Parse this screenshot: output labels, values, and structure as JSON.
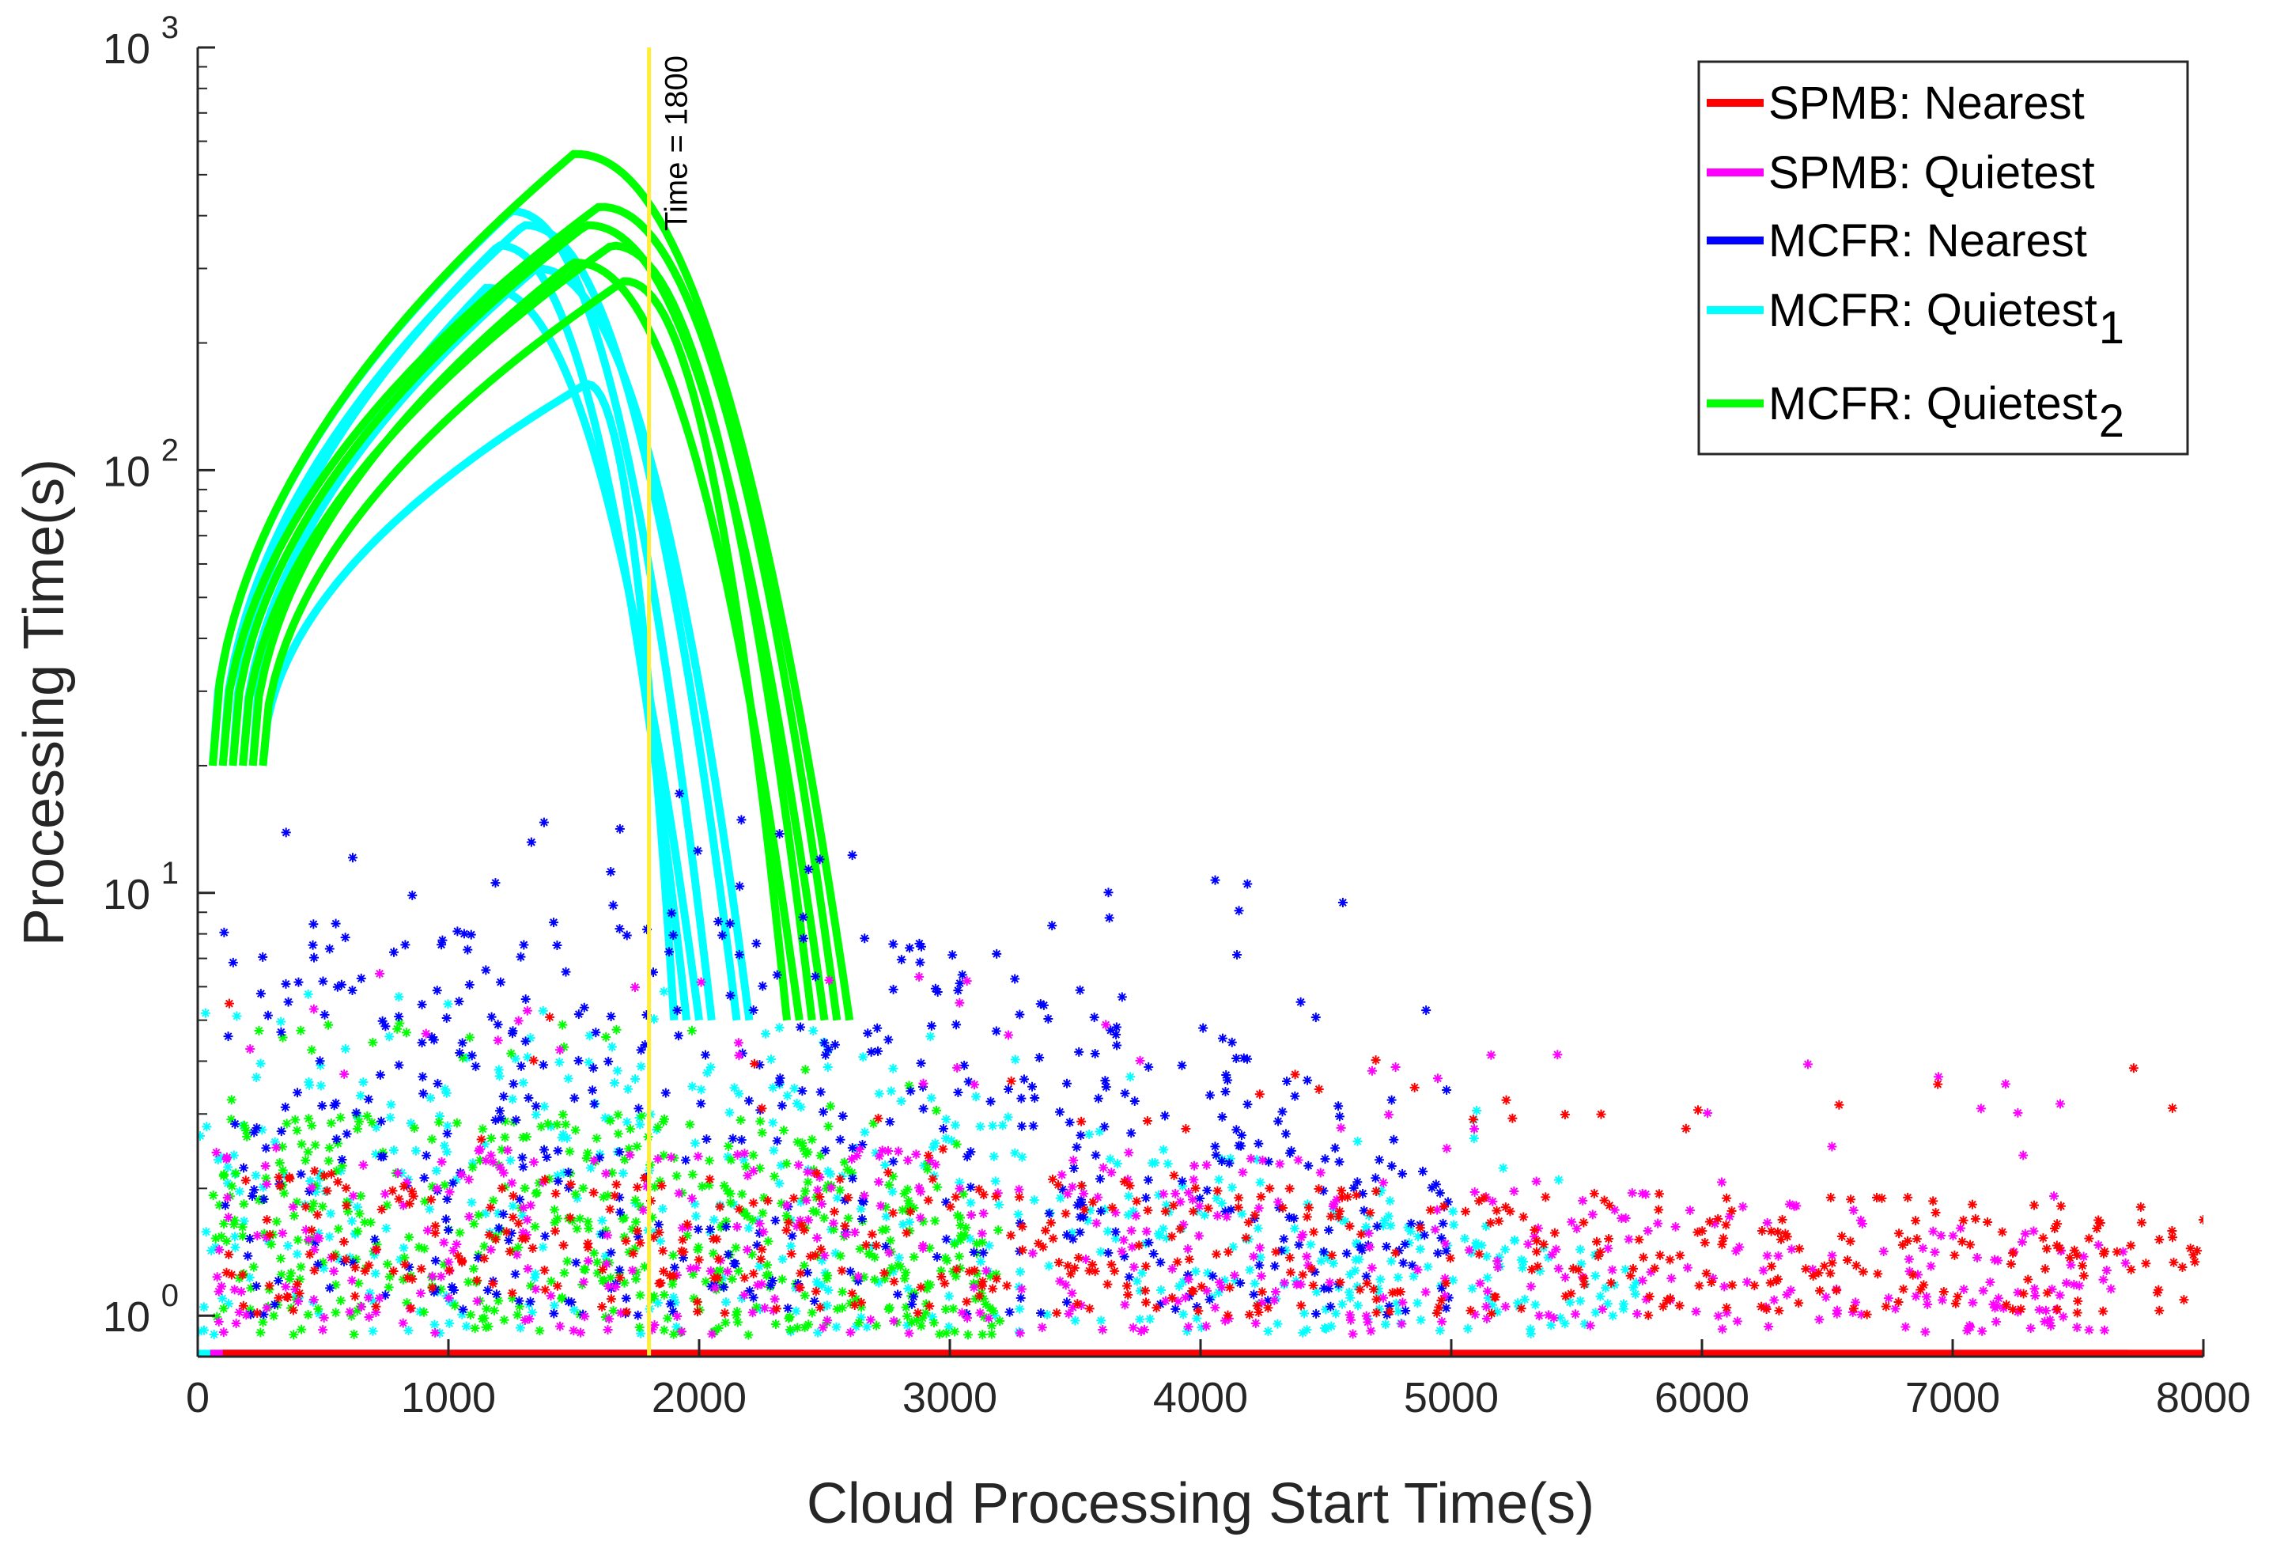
{
  "chart_data": {
    "type": "scatter",
    "xlabel": "Cloud Processing Start Time(s)",
    "ylabel": "Processing Time(s)",
    "xlim": [
      0,
      8000
    ],
    "ylim": [
      0.8,
      1000
    ],
    "y_scale": "log",
    "x_ticks": [
      0,
      1000,
      2000,
      3000,
      4000,
      5000,
      6000,
      7000,
      8000
    ],
    "x_tick_labels": [
      "0",
      "1000",
      "2000",
      "3000",
      "4000",
      "5000",
      "6000",
      "7000",
      "8000"
    ],
    "y_ticks": [
      1,
      10,
      100,
      1000
    ],
    "y_tick_labels": [
      {
        "base": "10",
        "exp": "0"
      },
      {
        "base": "10",
        "exp": "1"
      },
      {
        "base": "10",
        "exp": "2"
      },
      {
        "base": "10",
        "exp": "3"
      }
    ],
    "grid": false,
    "legend_position": "top-right",
    "reference_line": {
      "x": 1800,
      "label": "Time = 1800",
      "color": "#ffee33"
    },
    "series": [
      {
        "name": "SPMB: Nearest",
        "name_main": "SPMB: Nearest",
        "name_sub": "",
        "color": "#ff0000",
        "x_range": [
          100,
          8000
        ],
        "baseline": [
          1.0,
          2.2
        ],
        "spike_max": 6.0,
        "decay_start": 3500,
        "decay_end": 8000,
        "decay_to": [
          1.0,
          1.8
        ]
      },
      {
        "name": "SPMB: Quietest",
        "name_main": "SPMB: Quietest",
        "name_sub": "",
        "color": "#ff00ff",
        "x_range": [
          50,
          7700
        ],
        "baseline": [
          0.9,
          2.5
        ],
        "spike_max": 6.5,
        "decay_start": 3800,
        "decay_end": 7700,
        "decay_to": [
          0.9,
          1.5
        ]
      },
      {
        "name": "MCFR: Nearest",
        "name_main": "MCFR: Nearest",
        "name_sub": "",
        "color": "#0000ff",
        "x_range": [
          100,
          5000
        ],
        "baseline": [
          1.0,
          9.0
        ],
        "spike_max": 18,
        "decay_start": 2500,
        "decay_end": 5000,
        "decay_to": [
          1.0,
          2.0
        ]
      },
      {
        "name": "MCFR: Quietest1",
        "name_main": "MCFR: Quietest",
        "name_sub": "1",
        "color": "#00ffff",
        "x_range": [
          0,
          5750
        ],
        "baseline": [
          0.9,
          4.0
        ],
        "spike_max": 6.0,
        "decay_start": 2000,
        "decay_end": 5750,
        "decay_to": [
          0.9,
          1.3
        ],
        "curve_peaks": [
          410,
          380,
          340,
          300,
          270,
          160
        ],
        "curve_peak_x": [
          1250,
          1300,
          1200,
          1350,
          1150,
          1550
        ],
        "curve_end_x": [
          2050,
          2150,
          1950,
          2200,
          2000,
          1900
        ]
      },
      {
        "name": "MCFR: Quietest2",
        "name_main": "MCFR: Quietest",
        "name_sub": "2",
        "color": "#00ff00",
        "x_range": [
          50,
          3200
        ],
        "baseline": [
          0.9,
          3.0
        ],
        "spike_max": 5.0,
        "decay_start": 2200,
        "decay_end": 3200,
        "decay_to": [
          0.9,
          1.5
        ],
        "curve_peaks": [
          560,
          420,
          380,
          340,
          310,
          280
        ],
        "curve_peak_x": [
          1500,
          1600,
          1550,
          1650,
          1500,
          1700
        ],
        "curve_end_x": [
          2600,
          2550,
          2500,
          2450,
          2400,
          2350
        ]
      }
    ]
  }
}
